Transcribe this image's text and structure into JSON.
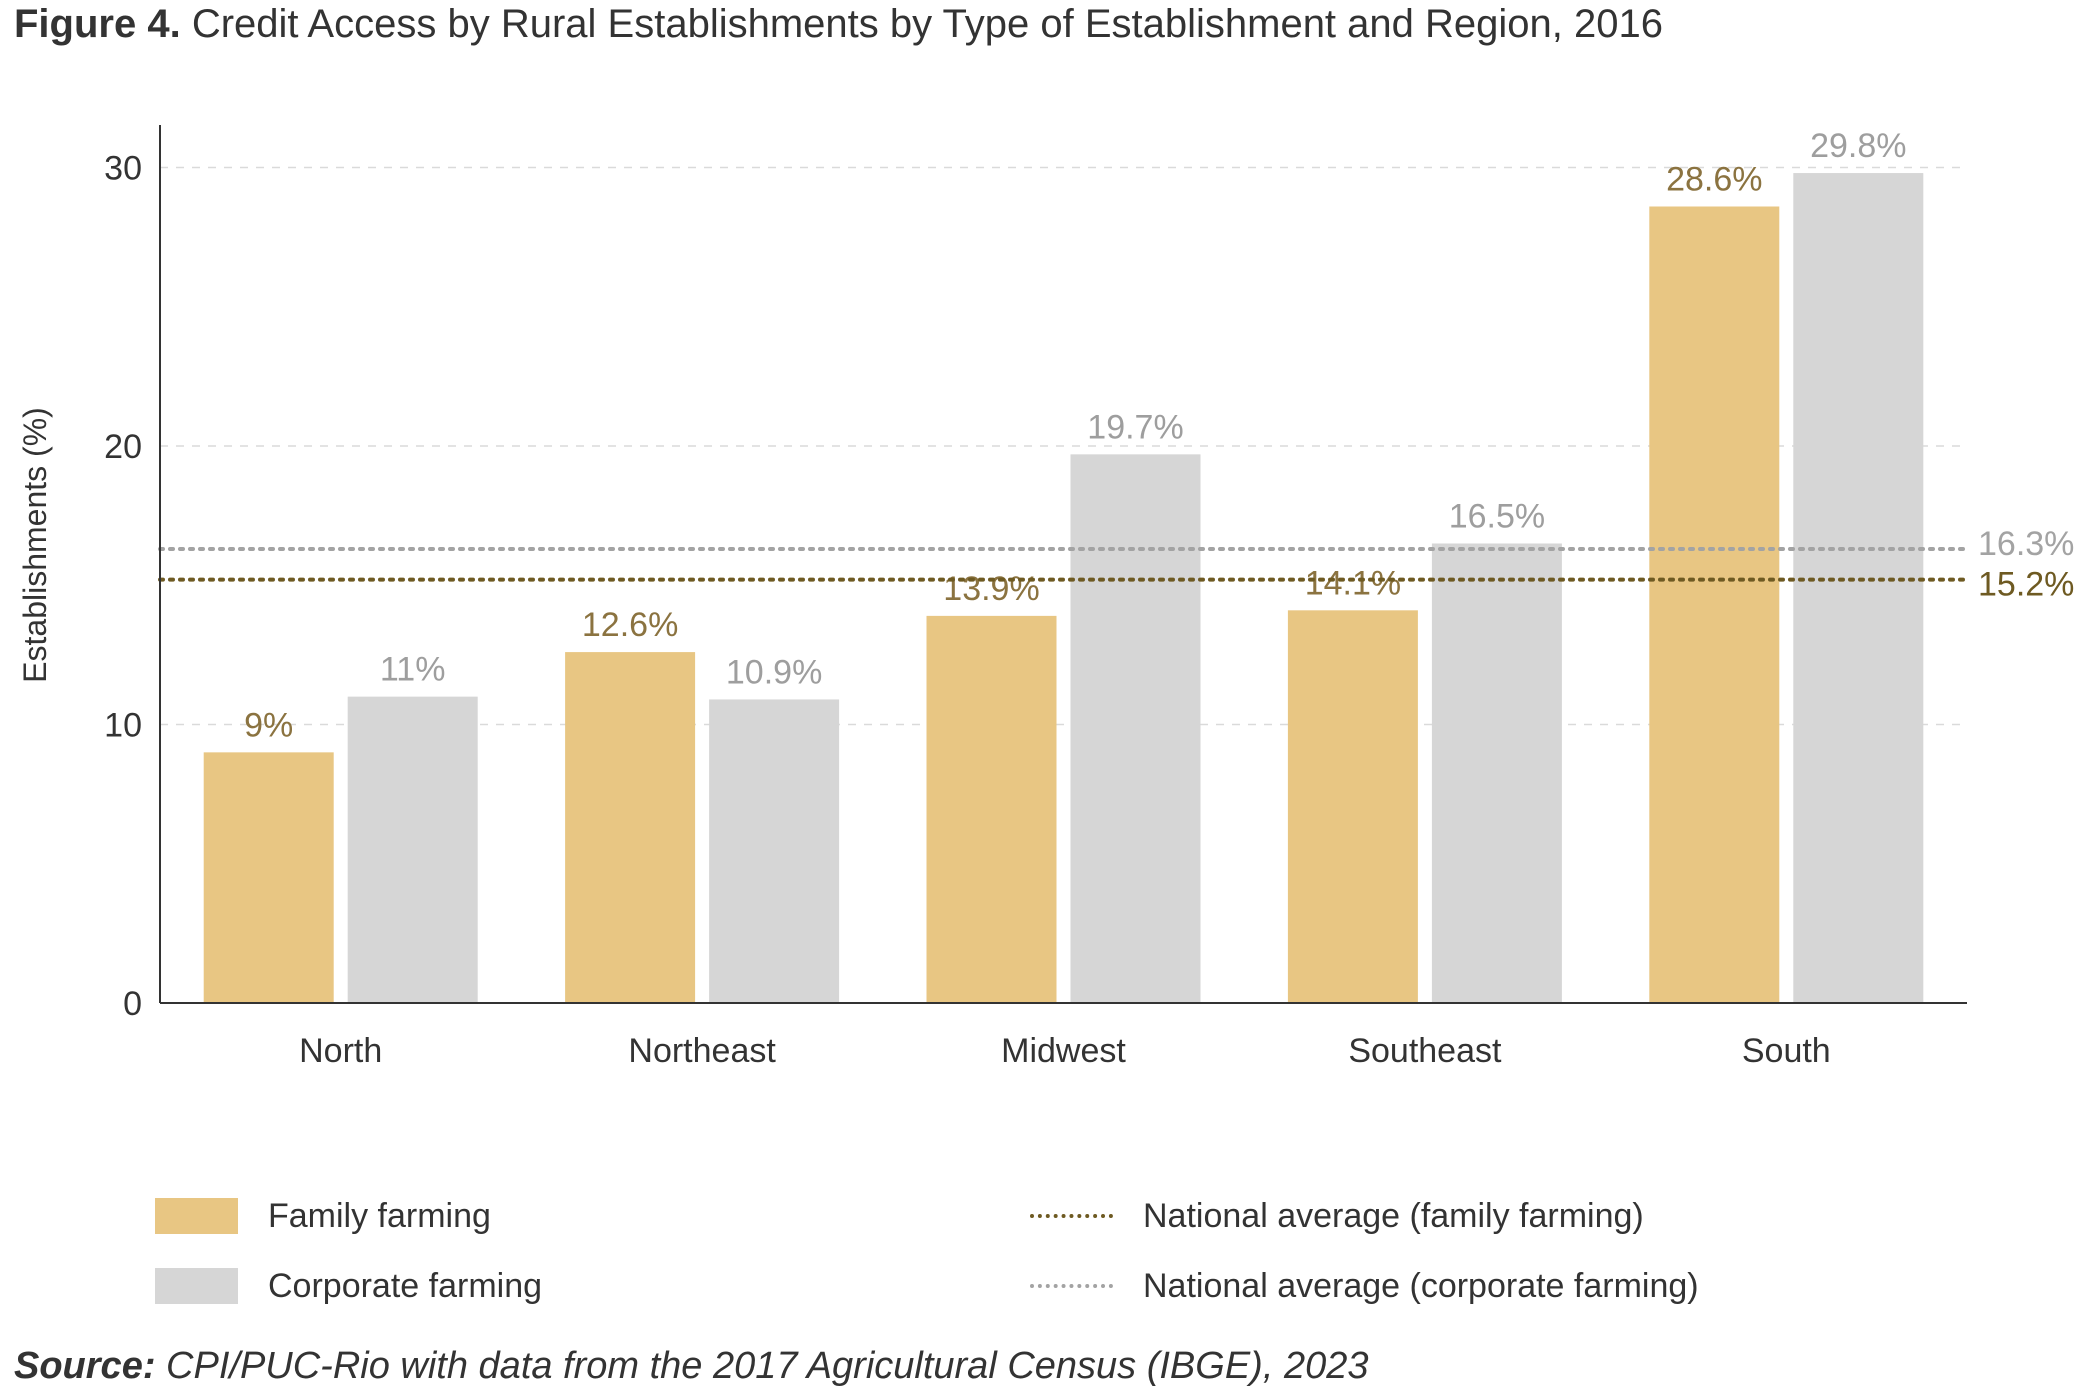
{
  "figure": {
    "label": "Figure 4.",
    "title": "Credit Access by Rural Establishments by Type of Establishment and Region, 2016"
  },
  "source": {
    "label": "Source:",
    "text": "CPI/PUC-Rio with data from the 2017 Agricultural Census (IBGE), 2023"
  },
  "colors": {
    "family": "#E8C683",
    "corporate": "#D6D6D6",
    "family_label": "#8B7340",
    "corporate_label": "#9E9E9E",
    "family_avg": "#6E5A22",
    "corporate_avg": "#A3A3A3"
  },
  "chart_data": {
    "type": "bar",
    "categories": [
      "North",
      "Northeast",
      "Midwest",
      "Southeast",
      "South"
    ],
    "series": [
      {
        "name": "Family farming",
        "values": [
          9,
          12.6,
          13.9,
          14.1,
          28.6
        ],
        "labels": [
          "9%",
          "12.6%",
          "13.9%",
          "14.1%",
          "28.6%"
        ]
      },
      {
        "name": "Corporate farming",
        "values": [
          11,
          10.9,
          19.7,
          16.5,
          29.8
        ],
        "labels": [
          "11%",
          "10.9%",
          "19.7%",
          "16.5%",
          "29.8%"
        ]
      }
    ],
    "reference_lines": [
      {
        "name": "National average (family farming)",
        "value": 15.2,
        "label": "15.2%"
      },
      {
        "name": "National average (corporate farming)",
        "value": 16.3,
        "label": "16.3%"
      }
    ],
    "ylabel": "Establishments (%)",
    "xlabel": "",
    "ylim": [
      0,
      31.5
    ],
    "yticks": [
      0,
      10,
      20,
      30
    ],
    "grid": "horizontal dashed",
    "legend_position": "bottom"
  }
}
